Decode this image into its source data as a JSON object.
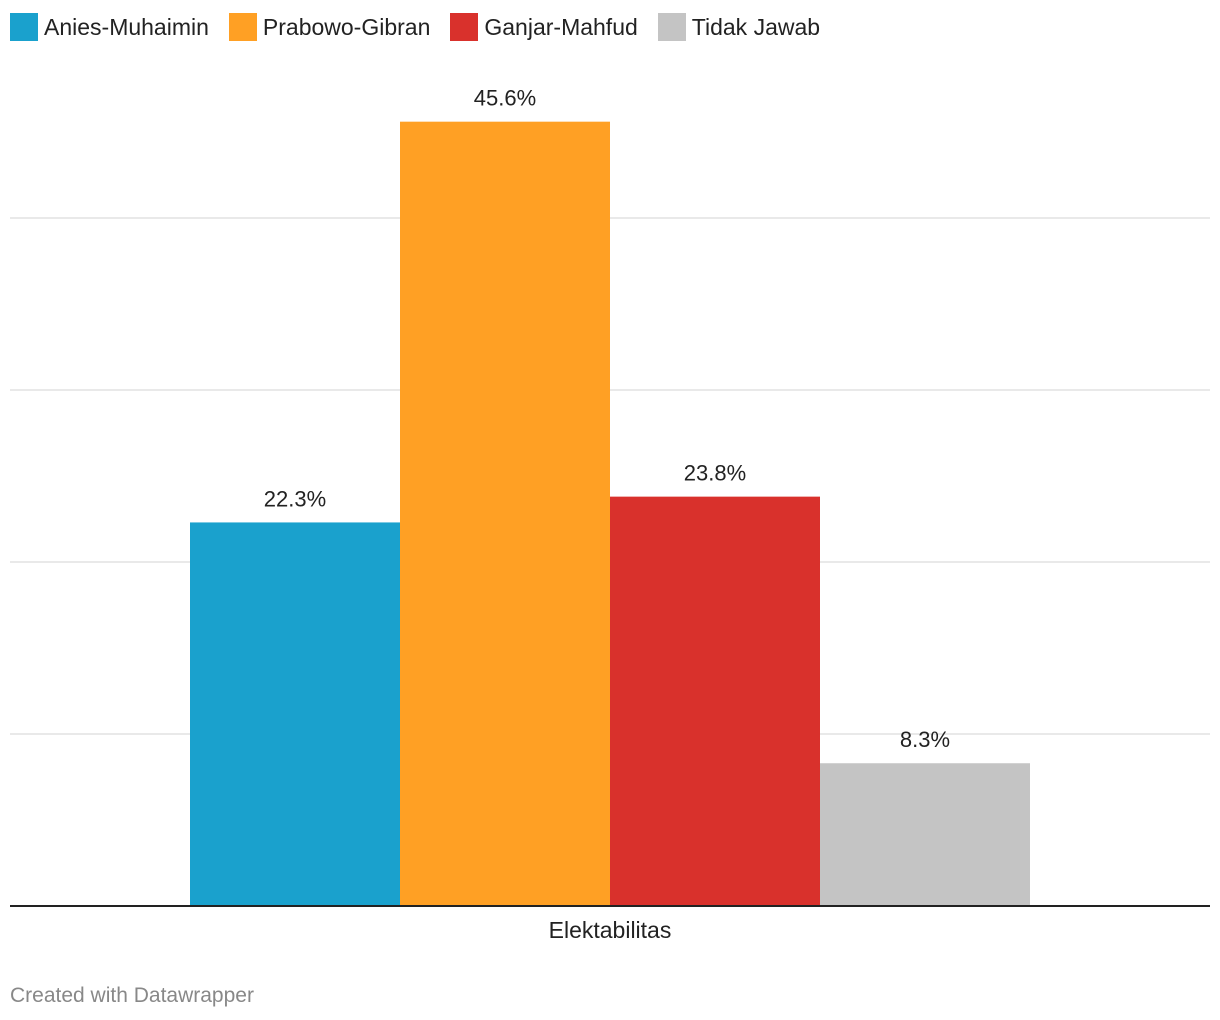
{
  "legend": [
    {
      "label": "Anies-Muhaimin",
      "color": "#1aa1cd"
    },
    {
      "label": "Prabowo-Gibran",
      "color": "#ffa024"
    },
    {
      "label": "Ganjar-Mahfud",
      "color": "#d9312c"
    },
    {
      "label": "Tidak Jawab",
      "color": "#c4c4c4"
    }
  ],
  "chart_data": {
    "type": "bar",
    "categories": [
      "Elektabilitas"
    ],
    "series": [
      {
        "name": "Anies-Muhaimin",
        "values": [
          22.3
        ],
        "label": "22.3%",
        "color": "#1aa1cd"
      },
      {
        "name": "Prabowo-Gibran",
        "values": [
          45.6
        ],
        "label": "45.6%",
        "color": "#ffa024"
      },
      {
        "name": "Ganjar-Mahfud",
        "values": [
          23.8
        ],
        "label": "23.8%",
        "color": "#d9312c"
      },
      {
        "name": "Tidak Jawab",
        "values": [
          8.3
        ],
        "label": "8.3%",
        "color": "#c4c4c4"
      }
    ],
    "xlabel": "Elektabilitas",
    "ylabel": "",
    "ylim": [
      0,
      50
    ],
    "gridlines": [
      10,
      20,
      30,
      40
    ],
    "legend_position": "top-left"
  },
  "footer": {
    "credit": "Created with Datawrapper"
  }
}
